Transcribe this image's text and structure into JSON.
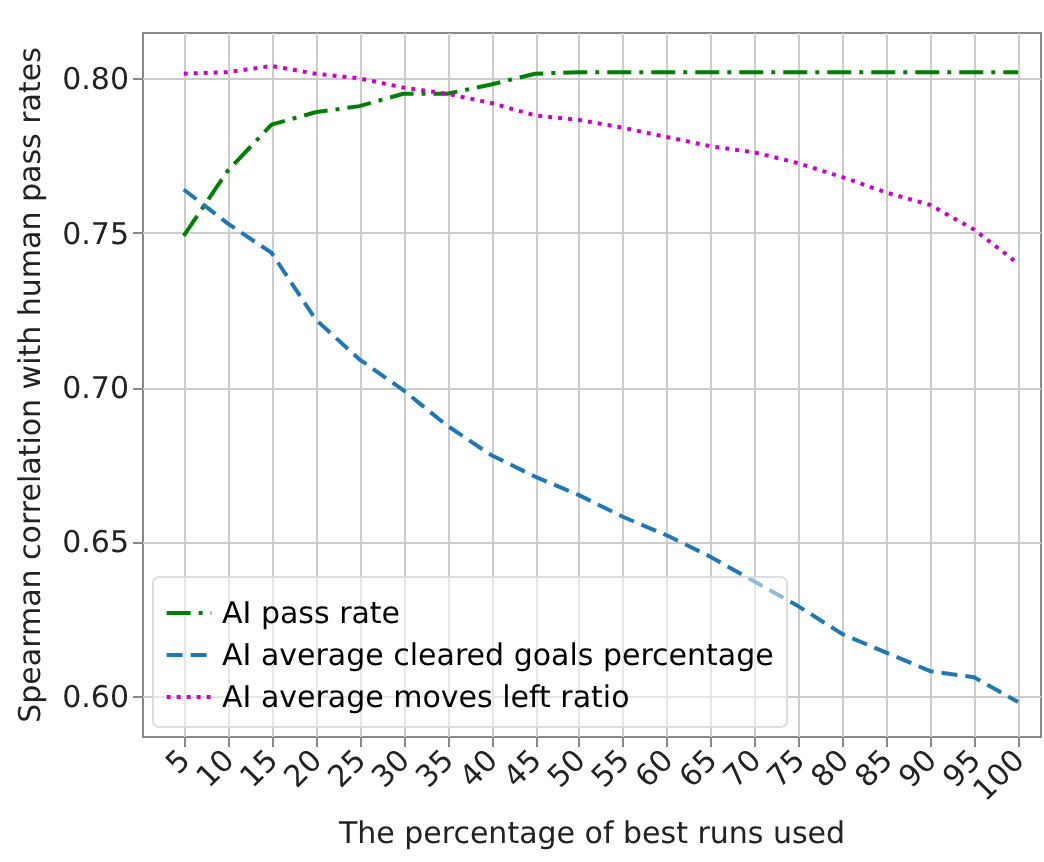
{
  "chart_data": {
    "type": "line",
    "xlabel": "The percentage of best runs used",
    "ylabel": "Spearman correlation with human pass rates",
    "x": [
      5,
      10,
      15,
      20,
      25,
      30,
      35,
      40,
      45,
      50,
      55,
      60,
      65,
      70,
      75,
      80,
      85,
      90,
      95,
      100
    ],
    "xlim": [
      0.25,
      102.5
    ],
    "xticks": [
      5,
      10,
      15,
      20,
      25,
      30,
      35,
      40,
      45,
      50,
      55,
      60,
      65,
      70,
      75,
      80,
      85,
      90,
      95,
      100
    ],
    "ylim": [
      0.587,
      0.815
    ],
    "yticks": [
      {
        "value": 0.6,
        "label": "0.60"
      },
      {
        "value": 0.65,
        "label": "0.65"
      },
      {
        "value": 0.7,
        "label": "0.70"
      },
      {
        "value": 0.75,
        "label": "0.75"
      },
      {
        "value": 0.8,
        "label": "0.80"
      }
    ],
    "grid": true,
    "legend": "bottom left",
    "marker": "none",
    "series": [
      {
        "name": "AI pass rate",
        "color": "#008000",
        "line_style": "dashdot",
        "values": [
          0.749,
          0.77,
          0.785,
          0.789,
          0.791,
          0.795,
          0.795,
          0.798,
          0.8015,
          0.802,
          0.802,
          0.802,
          0.802,
          0.802,
          0.802,
          0.802,
          0.802,
          0.802,
          0.802,
          0.802
        ]
      },
      {
        "name": "AI average cleared goals percentage",
        "color": "#1f77b4",
        "line_style": "dashed",
        "values": [
          0.764,
          0.753,
          0.7435,
          0.722,
          0.709,
          0.699,
          0.6875,
          0.678,
          0.671,
          0.665,
          0.658,
          0.652,
          0.645,
          0.637,
          0.629,
          0.62,
          0.614,
          0.608,
          0.606,
          0.598
        ]
      },
      {
        "name": "AI average moves left ratio",
        "color": "#cc00cc",
        "line_style": "dotted",
        "values": [
          0.8015,
          0.802,
          0.804,
          0.8015,
          0.8,
          0.797,
          0.795,
          0.792,
          0.788,
          0.7865,
          0.784,
          0.781,
          0.778,
          0.776,
          0.7725,
          0.768,
          0.763,
          0.759,
          0.751,
          0.74
        ]
      }
    ]
  }
}
